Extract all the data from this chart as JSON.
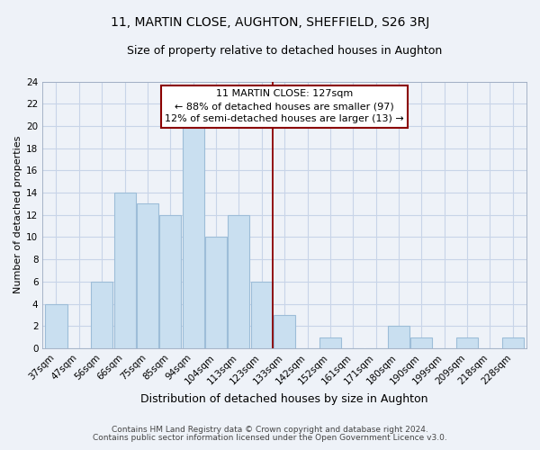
{
  "title": "11, MARTIN CLOSE, AUGHTON, SHEFFIELD, S26 3RJ",
  "subtitle": "Size of property relative to detached houses in Aughton",
  "xlabel": "Distribution of detached houses by size in Aughton",
  "ylabel": "Number of detached properties",
  "bar_labels": [
    "37sqm",
    "47sqm",
    "56sqm",
    "66sqm",
    "75sqm",
    "85sqm",
    "94sqm",
    "104sqm",
    "113sqm",
    "123sqm",
    "133sqm",
    "142sqm",
    "152sqm",
    "161sqm",
    "171sqm",
    "180sqm",
    "190sqm",
    "199sqm",
    "209sqm",
    "218sqm",
    "228sqm"
  ],
  "bar_values": [
    4,
    0,
    6,
    14,
    13,
    12,
    20,
    10,
    12,
    6,
    3,
    0,
    1,
    0,
    0,
    2,
    1,
    0,
    1,
    0,
    1
  ],
  "bar_color": "#c9dff0",
  "bar_edge_color": "#9dbdd8",
  "vline_color": "#8b0000",
  "annotation_text_line1": "11 MARTIN CLOSE: 127sqm",
  "annotation_text_line2": "← 88% of detached houses are smaller (97)",
  "annotation_text_line3": "12% of semi-detached houses are larger (13) →",
  "ylim": [
    0,
    24
  ],
  "yticks": [
    0,
    2,
    4,
    6,
    8,
    10,
    12,
    14,
    16,
    18,
    20,
    22,
    24
  ],
  "background_color": "#eef2f8",
  "grid_color": "#c8d4e8",
  "footer_line1": "Contains HM Land Registry data © Crown copyright and database right 2024.",
  "footer_line2": "Contains public sector information licensed under the Open Government Licence v3.0.",
  "title_fontsize": 10,
  "subtitle_fontsize": 9,
  "xlabel_fontsize": 9,
  "ylabel_fontsize": 8,
  "tick_fontsize": 7.5,
  "annotation_fontsize": 8,
  "footer_fontsize": 6.5
}
